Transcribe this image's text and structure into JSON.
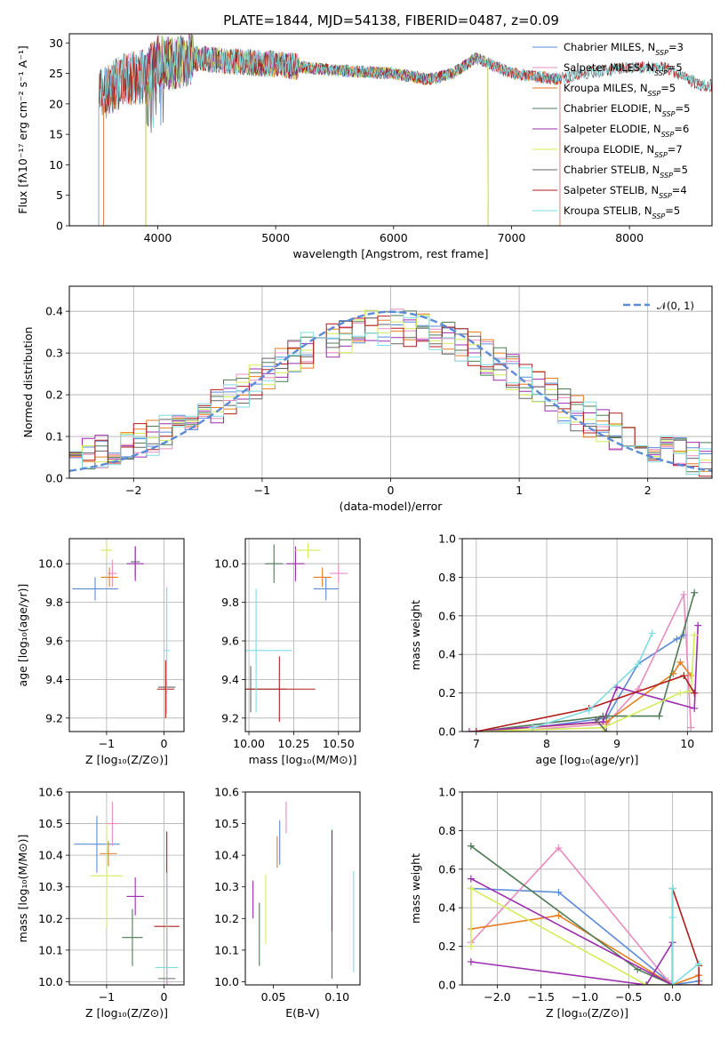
{
  "figure": {
    "title": "PLATE=1844, MJD=54138, FIBERID=0487, z=0.09"
  },
  "colors": {
    "Chabrier MILES": "#5b8bd6",
    "Salpeter MILES": "#e88cbf",
    "Kroupa MILES": "#e67e22",
    "Chabrier ELODIE": "#4f7a56",
    "Salpeter ELODIE": "#9b2fae",
    "Kroupa ELODIE": "#d4ec5a",
    "Chabrier STELIB": "#666666",
    "Salpeter STELIB": "#b01d1d",
    "Kroupa STELIB": "#7fdbe0"
  },
  "chart_data": [
    {
      "id": "spectrum",
      "type": "line",
      "xlabel": "wavelength [Angstrom, rest frame]",
      "ylabel": "Flux [fλ10⁻¹⁷ erg cm⁻² s⁻¹ A⁻¹]",
      "xlim": [
        3250,
        8700
      ],
      "ylim": [
        0,
        31.5
      ],
      "xticks": [
        4000,
        5000,
        6000,
        7000,
        8000
      ],
      "yticks": [
        0,
        5,
        10,
        15,
        20,
        25,
        30
      ],
      "legend_position": "top-right",
      "legend": [
        {
          "model": "Chabrier MILES",
          "label": "Chabrier MILES, N",
          "sub": "SSP",
          "tail": "=3"
        },
        {
          "model": "Salpeter MILES",
          "label": "Salpeter MILES, N",
          "sub": "SSP",
          "tail": "=5"
        },
        {
          "model": "Kroupa MILES",
          "label": "Kroupa MILES, N",
          "sub": "SSP",
          "tail": "=5"
        },
        {
          "model": "Chabrier ELODIE",
          "label": "Chabrier ELODIE, N",
          "sub": "SSP",
          "tail": "=5"
        },
        {
          "model": "Salpeter ELODIE",
          "label": "Salpeter ELODIE, N",
          "sub": "SSP",
          "tail": "=6"
        },
        {
          "model": "Kroupa ELODIE",
          "label": "Kroupa ELODIE, N",
          "sub": "SSP",
          "tail": "=7"
        },
        {
          "model": "Chabrier STELIB",
          "label": "Chabrier STELIB, N",
          "sub": "SSP",
          "tail": "=5"
        },
        {
          "model": "Salpeter STELIB",
          "label": "Salpeter STELIB, N",
          "sub": "SSP",
          "tail": "=4"
        },
        {
          "model": "Kroupa STELIB",
          "label": "Kroupa STELIB, N",
          "sub": "SSP",
          "tail": "=5"
        }
      ],
      "continuum": {
        "x": [
          3500,
          3700,
          3900,
          4000,
          4100,
          4300,
          4600,
          5000,
          5500,
          6000,
          6300,
          6500,
          6700,
          7000,
          7400,
          7600,
          8000,
          8300,
          8600
        ],
        "y": [
          21,
          24,
          24.5,
          27,
          26.5,
          27.5,
          27,
          26.5,
          25.5,
          25,
          24,
          25,
          27.5,
          25,
          24,
          25,
          26,
          26,
          23
        ]
      },
      "model_ranges": [
        {
          "model": "Chabrier MILES",
          "start": 3540,
          "end": 7410
        },
        {
          "model": "Salpeter MILES",
          "start": 3540,
          "end": 7410
        },
        {
          "model": "Kroupa MILES",
          "start": 3540,
          "end": 7410
        },
        {
          "model": "Chabrier ELODIE",
          "start": 3900,
          "end": 6800
        },
        {
          "model": "Salpeter ELODIE",
          "start": 3900,
          "end": 6800
        },
        {
          "model": "Kroupa ELODIE",
          "start": 3900,
          "end": 6800
        },
        {
          "model": "Chabrier STELIB",
          "start": 3500,
          "end": 8700
        },
        {
          "model": "Salpeter STELIB",
          "start": 3500,
          "end": 8700
        },
        {
          "model": "Kroupa STELIB",
          "start": 3500,
          "end": 8700
        }
      ]
    },
    {
      "id": "residuals",
      "type": "line",
      "xlabel": "(data-model)/error",
      "ylabel": "Normed distribution",
      "xlim": [
        -2.5,
        2.5
      ],
      "ylim": [
        0,
        0.46
      ],
      "xticks": [
        -2,
        -1,
        0,
        1,
        2
      ],
      "yticks": [
        0.0,
        0.1,
        0.2,
        0.3,
        0.4
      ],
      "grid": true,
      "legend_position": "top-right",
      "legend": [
        {
          "label": "𝒩(0, 1)",
          "style": "dashed",
          "color": "#5b8bd6"
        }
      ],
      "bin_width": 0.1,
      "bin_start": -2.5,
      "bin_count": 50,
      "gaussian": {
        "mean": 0,
        "sigma": 1
      }
    },
    {
      "id": "age_vs_Z",
      "type": "scatter",
      "xlabel": "Z [log₁₀(Z/Z⊙)]",
      "ylabel": "age  [log₁₀(age/yr)]",
      "xlim": [
        -1.65,
        0.35
      ],
      "ylim": [
        9.13,
        10.13
      ],
      "xticks": [
        -1,
        0
      ],
      "yticks": [
        9.2,
        9.4,
        9.6,
        9.8,
        10.0
      ],
      "grid": true,
      "points": [
        {
          "model": "Chabrier MILES",
          "x": -1.2,
          "xerr": 0.4,
          "y": 9.87,
          "yerr": 0.06
        },
        {
          "model": "Salpeter MILES",
          "x": -0.9,
          "xerr": 0.08,
          "y": 9.95,
          "yerr": 0.07
        },
        {
          "model": "Kroupa MILES",
          "x": -0.95,
          "xerr": 0.15,
          "y": 9.93,
          "yerr": 0.05
        },
        {
          "model": "Chabrier ELODIE",
          "x": -0.5,
          "xerr": 0.08,
          "y": 10.01,
          "yerr": 0.08
        },
        {
          "model": "Salpeter ELODIE",
          "x": -0.5,
          "xerr": 0.15,
          "y": 10.0,
          "yerr": 0.09
        },
        {
          "model": "Kroupa ELODIE",
          "x": -1.0,
          "xerr": 0.1,
          "y": 10.07,
          "yerr": 0.04
        },
        {
          "model": "Chabrier STELIB",
          "x": 0.05,
          "xerr": 0.15,
          "y": 9.36,
          "yerr": 0.03
        },
        {
          "model": "Salpeter STELIB",
          "x": 0.03,
          "xerr": 0.15,
          "y": 9.35,
          "yerr": 0.15
        },
        {
          "model": "Kroupa STELIB",
          "x": 0.05,
          "xerr": 0.05,
          "y": 9.55,
          "yerr": 0.33
        }
      ]
    },
    {
      "id": "age_vs_mass",
      "type": "scatter",
      "xlabel": "mass [log₁₀(M/M⊙)]",
      "ylabel": "",
      "xlim": [
        9.98,
        10.62
      ],
      "ylim": [
        9.13,
        10.13
      ],
      "xticks": [
        10.0,
        10.25,
        10.5
      ],
      "yticks": [
        9.2,
        9.4,
        9.6,
        9.8,
        10.0
      ],
      "grid": true,
      "points": [
        {
          "model": "Chabrier MILES",
          "x": 10.43,
          "xerr": 0.07,
          "y": 9.87,
          "yerr": 0.06
        },
        {
          "model": "Salpeter MILES",
          "x": 10.5,
          "xerr": 0.05,
          "y": 9.95,
          "yerr": 0.05
        },
        {
          "model": "Kroupa MILES",
          "x": 10.41,
          "xerr": 0.05,
          "y": 9.93,
          "yerr": 0.05
        },
        {
          "model": "Chabrier ELODIE",
          "x": 10.14,
          "xerr": 0.05,
          "y": 10.0,
          "yerr": 0.1
        },
        {
          "model": "Salpeter ELODIE",
          "x": 10.26,
          "xerr": 0.05,
          "y": 10.0,
          "yerr": 0.09
        },
        {
          "model": "Kroupa ELODIE",
          "x": 10.33,
          "xerr": 0.07,
          "y": 10.07,
          "yerr": 0.04
        },
        {
          "model": "Chabrier STELIB",
          "x": 10.01,
          "xerr": 0.2,
          "y": 9.35,
          "yerr": 0.12
        },
        {
          "model": "Salpeter STELIB",
          "x": 10.17,
          "xerr": 0.2,
          "y": 9.35,
          "yerr": 0.17
        },
        {
          "model": "Kroupa STELIB",
          "x": 10.04,
          "xerr": 0.2,
          "y": 9.55,
          "yerr": 0.32
        }
      ]
    },
    {
      "id": "weight_vs_age",
      "type": "line",
      "xlabel": "age  [log₁₀(age/yr)]",
      "ylabel": "mass weight",
      "xlim": [
        6.8,
        10.35
      ],
      "ylim": [
        0,
        1.0
      ],
      "xticks": [
        7,
        8,
        9,
        10
      ],
      "yticks": [
        0.0,
        0.2,
        0.4,
        0.6,
        0.8,
        1.0
      ],
      "grid": true,
      "series": [
        {
          "model": "Chabrier MILES",
          "x": [
            7.8,
            8.85,
            9.3,
            9.85,
            9.95
          ],
          "y": [
            0.02,
            0.07,
            0.35,
            0.48,
            0.5
          ]
        },
        {
          "model": "Salpeter MILES",
          "x": [
            7.8,
            8.85,
            9.3,
            9.95,
            10.05
          ],
          "y": [
            0.01,
            0.04,
            0.22,
            0.71,
            0.02
          ]
        },
        {
          "model": "Kroupa MILES",
          "x": [
            7.0,
            8.85,
            9.8,
            9.9,
            10.05
          ],
          "y": [
            0.0,
            0.05,
            0.3,
            0.36,
            0.29
          ]
        },
        {
          "model": "Chabrier ELODIE",
          "x": [
            7.0,
            8.85,
            9.6,
            10.1
          ],
          "y": [
            0.0,
            0.08,
            0.08,
            0.72
          ]
        },
        {
          "model": "Salpeter ELODIE",
          "x": [
            6.9,
            8.8,
            9.0,
            10.1,
            10.15
          ],
          "y": [
            0.0,
            0.05,
            0.23,
            0.12,
            0.55
          ]
        },
        {
          "model": "Kroupa ELODIE",
          "x": [
            7.0,
            8.8,
            9.9,
            10.05,
            10.1
          ],
          "y": [
            0.0,
            0.02,
            0.2,
            0.21,
            0.5
          ]
        },
        {
          "model": "Chabrier STELIB",
          "x": [
            8.8,
            8.7,
            8.85
          ],
          "y": [
            0.08,
            0.06,
            0.0
          ]
        },
        {
          "model": "Salpeter STELIB",
          "x": [
            7.0,
            8.6,
            9.95,
            10.1
          ],
          "y": [
            0.0,
            0.12,
            0.29,
            0.2
          ]
        },
        {
          "model": "Kroupa STELIB",
          "x": [
            7.8,
            8.6,
            9.3,
            9.5
          ],
          "y": [
            0.02,
            0.11,
            0.35,
            0.51
          ]
        }
      ]
    },
    {
      "id": "mass_vs_Z",
      "type": "scatter",
      "xlabel": "Z [log₁₀(Z/Z⊙)]",
      "ylabel": "mass [log₁₀(M/M⊙)]",
      "xlim": [
        -1.65,
        0.35
      ],
      "ylim": [
        9.99,
        10.6
      ],
      "xticks": [
        -1,
        0
      ],
      "yticks": [
        10.0,
        10.1,
        10.2,
        10.3,
        10.4,
        10.5,
        10.6
      ],
      "grid": true,
      "points": [
        {
          "model": "Chabrier MILES",
          "x": -1.17,
          "xerr": 0.4,
          "y": 10.435,
          "yerr": 0.09
        },
        {
          "model": "Salpeter MILES",
          "x": -0.9,
          "xerr": 0.1,
          "y": 10.5,
          "yerr": 0.07
        },
        {
          "model": "Kroupa MILES",
          "x": -0.97,
          "xerr": 0.15,
          "y": 10.405,
          "yerr": 0.04
        },
        {
          "model": "Chabrier ELODIE",
          "x": -0.55,
          "xerr": 0.18,
          "y": 10.14,
          "yerr": 0.09
        },
        {
          "model": "Salpeter ELODIE",
          "x": -0.5,
          "xerr": 0.15,
          "y": 10.27,
          "yerr": 0.06
        },
        {
          "model": "Kroupa ELODIE",
          "x": -1.0,
          "xerr": 0.28,
          "y": 10.335,
          "yerr": 0.165
        },
        {
          "model": "Chabrier STELIB",
          "x": 0.05,
          "xerr": 0.15,
          "y": 10.01,
          "yerr": 0.005
        },
        {
          "model": "Salpeter STELIB",
          "x": 0.05,
          "xerr": 0.22,
          "y": 10.175,
          "yerr": 0.3
        },
        {
          "model": "Kroupa STELIB",
          "x": 0.05,
          "xerr": 0.2,
          "y": 10.045,
          "yerr": 0.3
        }
      ]
    },
    {
      "id": "mass_vs_EBV",
      "type": "scatter",
      "xlabel": "E(B-V)",
      "ylabel": "",
      "xlim": [
        0.028,
        0.118
      ],
      "ylim": [
        9.99,
        10.6
      ],
      "xticks": [
        0.05,
        0.1
      ],
      "yticks": [
        10.0,
        10.1,
        10.2,
        10.3,
        10.4,
        10.5,
        10.6
      ],
      "grid": false,
      "points": [
        {
          "model": "Chabrier MILES",
          "x": 0.055,
          "xerr": 0,
          "y": 10.44,
          "yerr": 0.07
        },
        {
          "model": "Salpeter MILES",
          "x": 0.06,
          "xerr": 0,
          "y": 10.52,
          "yerr": 0.05
        },
        {
          "model": "Kroupa MILES",
          "x": 0.053,
          "xerr": 0,
          "y": 10.41,
          "yerr": 0.05
        },
        {
          "model": "Chabrier ELODIE",
          "x": 0.039,
          "xerr": 0,
          "y": 10.15,
          "yerr": 0.1
        },
        {
          "model": "Salpeter ELODIE",
          "x": 0.034,
          "xerr": 0,
          "y": 10.26,
          "yerr": 0.06
        },
        {
          "model": "Kroupa ELODIE",
          "x": 0.044,
          "xerr": 0,
          "y": 10.23,
          "yerr": 0.11
        },
        {
          "model": "Chabrier STELIB",
          "x": 0.096,
          "xerr": 0,
          "y": 10.14,
          "yerr": 0.13
        },
        {
          "model": "Salpeter STELIB",
          "x": 0.096,
          "xerr": 0,
          "y": 10.32,
          "yerr": 0.16
        },
        {
          "model": "Kroupa STELIB",
          "x": 0.113,
          "xerr": 0,
          "y": 10.19,
          "yerr": 0.16
        }
      ]
    },
    {
      "id": "weight_vs_Z",
      "type": "line",
      "xlabel": "Z [log₁₀(Z/Z⊙)]",
      "ylabel": "mass weight",
      "xlim": [
        -2.4,
        0.45
      ],
      "ylim": [
        0,
        1.0
      ],
      "xticks": [
        -2.0,
        -1.5,
        -1.0,
        -0.5,
        0.0
      ],
      "yticks": [
        0.0,
        0.2,
        0.4,
        0.6,
        0.8,
        1.0
      ],
      "grid": true,
      "series": [
        {
          "model": "Chabrier MILES",
          "x": [
            -2.3,
            -1.3,
            0.0,
            0.3
          ],
          "y": [
            0.5,
            0.48,
            0.0,
            0.02
          ]
        },
        {
          "model": "Salpeter MILES",
          "x": [
            -2.3,
            -1.3,
            -0.05,
            0.0
          ],
          "y": [
            0.22,
            0.71,
            0.02,
            0.0
          ]
        },
        {
          "model": "Kroupa MILES",
          "x": [
            -2.3,
            -1.3,
            0.0,
            0.3,
            0.3
          ],
          "y": [
            0.29,
            0.36,
            0.0,
            0.05,
            0.05
          ]
        },
        {
          "model": "Chabrier ELODIE",
          "x": [
            -2.3,
            -0.4,
            0.0
          ],
          "y": [
            0.72,
            0.08,
            0.0
          ]
        },
        {
          "model": "Salpeter ELODIE",
          "x": [
            -2.3,
            -0.3,
            0.0,
            0.0,
            -2.3
          ],
          "y": [
            0.12,
            0.0,
            0.22,
            0.0,
            0.55
          ]
        },
        {
          "model": "Kroupa ELODIE",
          "x": [
            -2.3,
            -2.3,
            -0.3,
            0.0
          ],
          "y": [
            0.2,
            0.5,
            0.0,
            0.0
          ]
        },
        {
          "model": "Chabrier STELIB",
          "x": [
            -0.3,
            0.0,
            0.3
          ],
          "y": [
            0.0,
            0.0,
            0.0
          ]
        },
        {
          "model": "Salpeter STELIB",
          "x": [
            0.0,
            0.0,
            0.3,
            0.3
          ],
          "y": [
            0.0,
            0.5,
            0.1,
            0.0
          ]
        },
        {
          "model": "Kroupa STELIB",
          "x": [
            0.0,
            0.0,
            0.0,
            0.3
          ],
          "y": [
            0.5,
            0.35,
            0.0,
            0.11
          ]
        }
      ]
    }
  ]
}
